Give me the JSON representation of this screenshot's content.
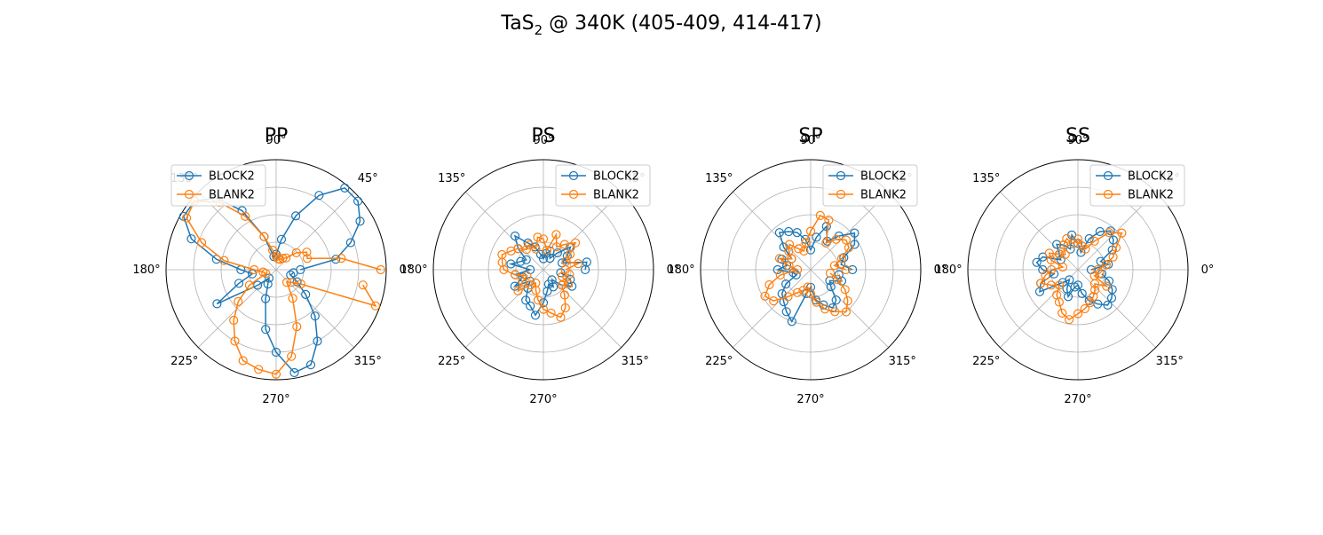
{
  "figure": {
    "title_main": "TaS",
    "title_sub": "2",
    "title_rest": " @ 340K (405-409, 414-417)"
  },
  "colors": {
    "series1": "#1f77b4",
    "series2": "#ff7f0e",
    "grid": "#b0b0b0",
    "axis": "#000000"
  },
  "chart_data": [
    {
      "type": "scatter",
      "title": "PP",
      "angle_ticks": [
        "0°",
        "45°",
        "90°",
        "135°",
        "180°",
        "225°",
        "270°",
        "315°"
      ],
      "grid": true,
      "legend_loc": "upper-left",
      "rmax": 1.0,
      "series": [
        {
          "name": "BLOCK2",
          "theta": [
            0,
            10,
            20,
            30,
            40,
            50,
            60,
            70,
            80,
            90,
            100,
            110,
            120,
            130,
            140,
            150,
            160,
            170,
            180,
            190,
            200,
            210,
            220,
            230,
            240,
            250,
            260,
            270,
            280,
            290,
            300,
            310,
            320,
            330,
            340,
            350
          ],
          "r": [
            0.22,
            0.55,
            0.72,
            0.88,
            0.97,
            0.97,
            0.78,
            0.52,
            0.28,
            0.14,
            0.12,
            0.32,
            0.62,
            0.85,
            0.97,
            0.97,
            0.82,
            0.55,
            0.32,
            0.22,
            0.36,
            0.62,
            0.22,
            0.1,
            0.15,
            0.28,
            0.55,
            0.75,
            0.95,
            0.92,
            0.75,
            0.55,
            0.35,
            0.22,
            0.14,
            0.16
          ]
        },
        {
          "name": "BLANK2",
          "theta": [
            0,
            10,
            20,
            30,
            40,
            50,
            60,
            70,
            80,
            90,
            100,
            110,
            120,
            130,
            140,
            150,
            160,
            170,
            180,
            190,
            200,
            210,
            220,
            230,
            240,
            250,
            260,
            270,
            280,
            290,
            300,
            310,
            320,
            330,
            340,
            350
          ],
          "r": [
            0.95,
            0.6,
            0.3,
            0.32,
            0.24,
            0.14,
            0.12,
            0.1,
            0.1,
            0.12,
            0.18,
            0.32,
            0.56,
            0.8,
            0.97,
            0.94,
            0.72,
            0.48,
            0.2,
            0.12,
            0.1,
            0.28,
            0.45,
            0.6,
            0.75,
            0.88,
            0.92,
            0.95,
            0.8,
            0.55,
            0.3,
            0.15,
            0.18,
            0.26,
            0.96,
            0.8
          ]
        }
      ]
    },
    {
      "type": "scatter",
      "title": "PS",
      "angle_ticks": [
        "0°",
        "45°",
        "90°",
        "135°",
        "180°",
        "225°",
        "270°",
        "315°"
      ],
      "grid": true,
      "legend_loc": "upper-right",
      "rmax": 1.0,
      "series": [
        {
          "name": "BLOCK2",
          "theta": [
            0,
            10,
            20,
            30,
            40,
            50,
            60,
            70,
            80,
            90,
            100,
            110,
            120,
            130,
            140,
            150,
            160,
            170,
            180,
            190,
            200,
            210,
            220,
            230,
            240,
            250,
            260,
            270,
            280,
            290,
            300,
            310,
            320,
            330,
            340,
            350
          ],
          "r": [
            0.38,
            0.4,
            0.18,
            0.25,
            0.32,
            0.2,
            0.12,
            0.18,
            0.15,
            0.1,
            0.14,
            0.22,
            0.28,
            0.4,
            0.3,
            0.18,
            0.22,
            0.3,
            0.12,
            0.26,
            0.2,
            0.3,
            0.16,
            0.22,
            0.32,
            0.35,
            0.42,
            0.3,
            0.2,
            0.14,
            0.18,
            0.12,
            0.22,
            0.3,
            0.26,
            0.16
          ]
        },
        {
          "name": "BLANK2",
          "theta": [
            0,
            10,
            20,
            30,
            40,
            50,
            60,
            70,
            80,
            90,
            100,
            110,
            120,
            130,
            140,
            150,
            160,
            170,
            180,
            190,
            200,
            210,
            220,
            230,
            240,
            250,
            260,
            270,
            280,
            290,
            300,
            310,
            320,
            330,
            340,
            350
          ],
          "r": [
            0.2,
            0.32,
            0.22,
            0.28,
            0.38,
            0.3,
            0.24,
            0.34,
            0.18,
            0.28,
            0.3,
            0.2,
            0.26,
            0.24,
            0.3,
            0.34,
            0.4,
            0.38,
            0.36,
            0.26,
            0.16,
            0.22,
            0.3,
            0.18,
            0.14,
            0.2,
            0.28,
            0.36,
            0.4,
            0.46,
            0.4,
            0.3,
            0.22,
            0.26,
            0.18,
            0.24
          ]
        }
      ]
    },
    {
      "type": "scatter",
      "title": "SP",
      "angle_ticks": [
        "0°",
        "45°",
        "90°",
        "135°",
        "180°",
        "225°",
        "270°",
        "315°"
      ],
      "grid": true,
      "legend_loc": "upper-right",
      "rmax": 1.0,
      "series": [
        {
          "name": "BLOCK2",
          "theta": [
            0,
            10,
            20,
            30,
            40,
            50,
            60,
            70,
            80,
            90,
            100,
            110,
            120,
            130,
            140,
            150,
            160,
            170,
            180,
            190,
            200,
            210,
            220,
            230,
            240,
            250,
            260,
            270,
            280,
            290,
            300,
            310,
            320,
            330,
            340,
            350
          ],
          "r": [
            0.38,
            0.28,
            0.32,
            0.46,
            0.52,
            0.4,
            0.3,
            0.42,
            0.3,
            0.18,
            0.28,
            0.36,
            0.4,
            0.44,
            0.32,
            0.2,
            0.28,
            0.22,
            0.3,
            0.16,
            0.14,
            0.26,
            0.34,
            0.38,
            0.44,
            0.5,
            0.22,
            0.16,
            0.28,
            0.34,
            0.4,
            0.36,
            0.24,
            0.2,
            0.3,
            0.26
          ]
        },
        {
          "name": "BLANK2",
          "theta": [
            0,
            10,
            20,
            30,
            40,
            50,
            60,
            70,
            80,
            90,
            100,
            110,
            120,
            130,
            140,
            150,
            160,
            170,
            180,
            190,
            200,
            210,
            220,
            230,
            240,
            250,
            260,
            270,
            280,
            290,
            300,
            310,
            320,
            330,
            340,
            350
          ],
          "r": [
            0.32,
            0.22,
            0.3,
            0.4,
            0.42,
            0.36,
            0.28,
            0.48,
            0.5,
            0.35,
            0.25,
            0.18,
            0.22,
            0.3,
            0.26,
            0.2,
            0.3,
            0.2,
            0.12,
            0.28,
            0.4,
            0.48,
            0.44,
            0.32,
            0.24,
            0.2,
            0.16,
            0.22,
            0.3,
            0.38,
            0.44,
            0.5,
            0.44,
            0.36,
            0.26,
            0.18
          ]
        }
      ]
    },
    {
      "type": "scatter",
      "title": "SS",
      "angle_ticks": [
        "0°",
        "45°",
        "90°",
        "135°",
        "180°",
        "225°",
        "270°",
        "315°"
      ],
      "grid": true,
      "legend_loc": "upper-right",
      "rmax": 1.0,
      "series": [
        {
          "name": "BLOCK2",
          "theta": [
            0,
            10,
            20,
            30,
            40,
            50,
            60,
            70,
            80,
            90,
            100,
            110,
            120,
            130,
            140,
            150,
            160,
            170,
            180,
            190,
            200,
            210,
            220,
            230,
            240,
            250,
            260,
            270,
            280,
            290,
            300,
            310,
            320,
            330,
            340,
            350
          ],
          "r": [
            0.12,
            0.28,
            0.22,
            0.36,
            0.42,
            0.46,
            0.4,
            0.3,
            0.16,
            0.24,
            0.32,
            0.2,
            0.26,
            0.3,
            0.22,
            0.18,
            0.34,
            0.38,
            0.32,
            0.22,
            0.36,
            0.4,
            0.18,
            0.12,
            0.2,
            0.26,
            0.16,
            0.14,
            0.22,
            0.3,
            0.36,
            0.42,
            0.4,
            0.36,
            0.3,
            0.22
          ]
        },
        {
          "name": "BLANK2",
          "theta": [
            0,
            10,
            20,
            30,
            40,
            50,
            60,
            70,
            80,
            90,
            100,
            110,
            120,
            130,
            140,
            150,
            160,
            170,
            180,
            190,
            200,
            210,
            220,
            230,
            240,
            250,
            260,
            270,
            280,
            290,
            300,
            310,
            320,
            330,
            340,
            350
          ],
          "r": [
            0.18,
            0.26,
            0.34,
            0.4,
            0.52,
            0.44,
            0.3,
            0.2,
            0.22,
            0.28,
            0.24,
            0.3,
            0.26,
            0.18,
            0.22,
            0.3,
            0.26,
            0.14,
            0.24,
            0.3,
            0.36,
            0.28,
            0.22,
            0.3,
            0.34,
            0.42,
            0.46,
            0.4,
            0.36,
            0.32,
            0.28,
            0.24,
            0.2,
            0.3,
            0.16,
            0.2
          ]
        }
      ]
    }
  ]
}
